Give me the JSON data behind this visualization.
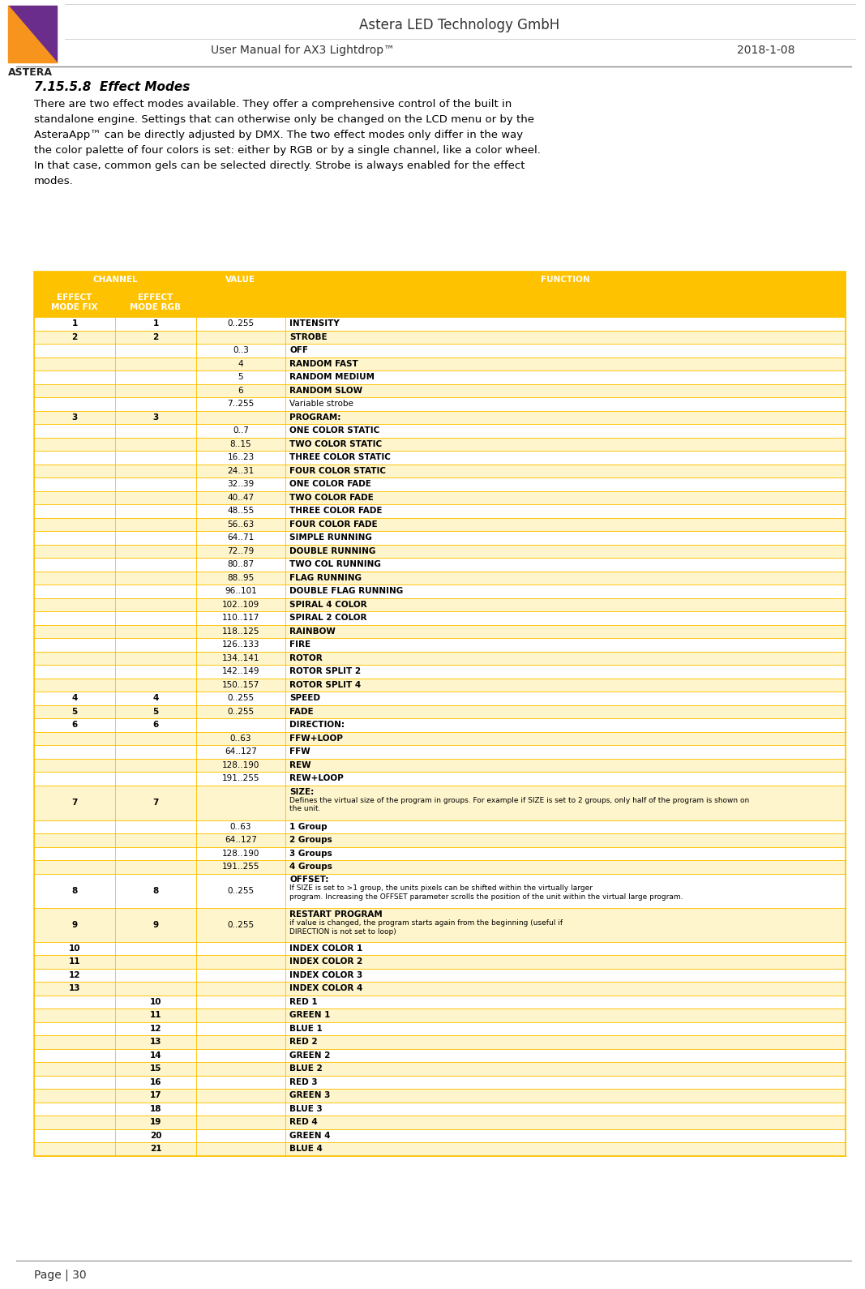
{
  "page_title1": "Astera LED Technology GmbH",
  "page_title2": "User Manual for AX3 Lightdrop™",
  "page_date": "2018-1-08",
  "page_footer": "Page | 30",
  "section_title": "7.15.5.8  Effect Modes",
  "body_lines": [
    "There are two effect modes available. They offer a comprehensive control of the built in",
    "standalone engine. Settings that can otherwise only be changed on the LCD menu or by the",
    "AsteraApp™ can be directly adjusted by DMX. The two effect modes only differ in the way",
    "the color palette of four colors is set: either by RGB or by a single channel, like a color wheel.",
    "In that case, common gels can be selected directly. Strobe is always enabled for the effect",
    "modes."
  ],
  "header_bg": "#FFC200",
  "header_text_color": "#FFFFFF",
  "row_white": "#FFFFFF",
  "row_yellow": "#FFF5CC",
  "border_color": "#FFC200",
  "table_rows": [
    {
      "ch_fix": "1",
      "ch_rgb": "1",
      "value": "0..255",
      "function": "INTENSITY",
      "bold": true,
      "hl": false,
      "type": "normal"
    },
    {
      "ch_fix": "2",
      "ch_rgb": "2",
      "value": "",
      "function": "STROBE",
      "bold": true,
      "hl": true,
      "type": "normal"
    },
    {
      "ch_fix": "",
      "ch_rgb": "",
      "value": "0..3",
      "function": "OFF",
      "bold": true,
      "hl": false,
      "type": "normal"
    },
    {
      "ch_fix": "",
      "ch_rgb": "",
      "value": "4",
      "function": "RANDOM FAST",
      "bold": true,
      "hl": true,
      "type": "normal"
    },
    {
      "ch_fix": "",
      "ch_rgb": "",
      "value": "5",
      "function": "RANDOM MEDIUM",
      "bold": true,
      "hl": false,
      "type": "normal"
    },
    {
      "ch_fix": "",
      "ch_rgb": "",
      "value": "6",
      "function": "RANDOM SLOW",
      "bold": true,
      "hl": true,
      "type": "normal"
    },
    {
      "ch_fix": "",
      "ch_rgb": "",
      "value": "7..255",
      "function": "Variable strobe",
      "bold": false,
      "hl": false,
      "type": "normal"
    },
    {
      "ch_fix": "3",
      "ch_rgb": "3",
      "value": "",
      "function": "PROGRAM:",
      "bold": true,
      "hl": true,
      "type": "normal"
    },
    {
      "ch_fix": "",
      "ch_rgb": "",
      "value": "0..7",
      "function": "ONE COLOR STATIC",
      "bold": true,
      "hl": false,
      "type": "normal"
    },
    {
      "ch_fix": "",
      "ch_rgb": "",
      "value": "8..15",
      "function": "TWO COLOR STATIC",
      "bold": true,
      "hl": true,
      "type": "normal"
    },
    {
      "ch_fix": "",
      "ch_rgb": "",
      "value": "16..23",
      "function": "THREE COLOR STATIC",
      "bold": true,
      "hl": false,
      "type": "normal"
    },
    {
      "ch_fix": "",
      "ch_rgb": "",
      "value": "24..31",
      "function": "FOUR COLOR STATIC",
      "bold": true,
      "hl": true,
      "type": "normal"
    },
    {
      "ch_fix": "",
      "ch_rgb": "",
      "value": "32..39",
      "function": "ONE COLOR FADE",
      "bold": true,
      "hl": false,
      "type": "normal"
    },
    {
      "ch_fix": "",
      "ch_rgb": "",
      "value": "40..47",
      "function": "TWO COLOR FADE",
      "bold": true,
      "hl": true,
      "type": "normal"
    },
    {
      "ch_fix": "",
      "ch_rgb": "",
      "value": "48..55",
      "function": "THREE COLOR FADE",
      "bold": true,
      "hl": false,
      "type": "normal"
    },
    {
      "ch_fix": "",
      "ch_rgb": "",
      "value": "56..63",
      "function": "FOUR COLOR FADE",
      "bold": true,
      "hl": true,
      "type": "normal"
    },
    {
      "ch_fix": "",
      "ch_rgb": "",
      "value": "64..71",
      "function": "SIMPLE RUNNING",
      "bold": true,
      "hl": false,
      "type": "normal"
    },
    {
      "ch_fix": "",
      "ch_rgb": "",
      "value": "72..79",
      "function": "DOUBLE RUNNING",
      "bold": true,
      "hl": true,
      "type": "normal"
    },
    {
      "ch_fix": "",
      "ch_rgb": "",
      "value": "80..87",
      "function": "TWO COL RUNNING",
      "bold": true,
      "hl": false,
      "type": "normal"
    },
    {
      "ch_fix": "",
      "ch_rgb": "",
      "value": "88..95",
      "function": "FLAG RUNNING",
      "bold": true,
      "hl": true,
      "type": "normal"
    },
    {
      "ch_fix": "",
      "ch_rgb": "",
      "value": "96..101",
      "function": "DOUBLE FLAG RUNNING",
      "bold": true,
      "hl": false,
      "type": "normal"
    },
    {
      "ch_fix": "",
      "ch_rgb": "",
      "value": "102..109",
      "function": "SPIRAL 4 COLOR",
      "bold": true,
      "hl": true,
      "type": "normal"
    },
    {
      "ch_fix": "",
      "ch_rgb": "",
      "value": "110..117",
      "function": "SPIRAL 2 COLOR",
      "bold": true,
      "hl": false,
      "type": "normal"
    },
    {
      "ch_fix": "",
      "ch_rgb": "",
      "value": "118..125",
      "function": "RAINBOW",
      "bold": true,
      "hl": true,
      "type": "normal"
    },
    {
      "ch_fix": "",
      "ch_rgb": "",
      "value": "126..133",
      "function": "FIRE",
      "bold": true,
      "hl": false,
      "type": "normal"
    },
    {
      "ch_fix": "",
      "ch_rgb": "",
      "value": "134..141",
      "function": "ROTOR",
      "bold": true,
      "hl": true,
      "type": "normal"
    },
    {
      "ch_fix": "",
      "ch_rgb": "",
      "value": "142..149",
      "function": "ROTOR SPLIT 2",
      "bold": true,
      "hl": false,
      "type": "normal"
    },
    {
      "ch_fix": "",
      "ch_rgb": "",
      "value": "150..157",
      "function": "ROTOR SPLIT 4",
      "bold": true,
      "hl": true,
      "type": "normal"
    },
    {
      "ch_fix": "4",
      "ch_rgb": "4",
      "value": "0..255",
      "function": "SPEED",
      "bold": true,
      "hl": false,
      "type": "normal"
    },
    {
      "ch_fix": "5",
      "ch_rgb": "5",
      "value": "0..255",
      "function": "FADE",
      "bold": true,
      "hl": true,
      "type": "normal"
    },
    {
      "ch_fix": "6",
      "ch_rgb": "6",
      "value": "",
      "function": "DIRECTION:",
      "bold": true,
      "hl": false,
      "type": "normal"
    },
    {
      "ch_fix": "",
      "ch_rgb": "",
      "value": "0..63",
      "function": "FFW+LOOP",
      "bold": true,
      "hl": true,
      "type": "normal"
    },
    {
      "ch_fix": "",
      "ch_rgb": "",
      "value": "64..127",
      "function": "FFW",
      "bold": true,
      "hl": false,
      "type": "normal"
    },
    {
      "ch_fix": "",
      "ch_rgb": "",
      "value": "128..190",
      "function": "REW",
      "bold": true,
      "hl": true,
      "type": "normal"
    },
    {
      "ch_fix": "",
      "ch_rgb": "",
      "value": "191..255",
      "function": "REW+LOOP",
      "bold": true,
      "hl": false,
      "type": "normal"
    },
    {
      "ch_fix": "7",
      "ch_rgb": "7",
      "value": "",
      "function": "SIZE:",
      "bold": true,
      "hl": true,
      "type": "size",
      "sub": "Defines the virtual size of the program in groups. For example if SIZE is set to 2 groups, only half of the program is shown on\nthe unit."
    },
    {
      "ch_fix": "",
      "ch_rgb": "",
      "value": "0..63",
      "function": "1 Group",
      "bold": true,
      "hl": false,
      "type": "normal"
    },
    {
      "ch_fix": "",
      "ch_rgb": "",
      "value": "64..127",
      "function": "2 Groups",
      "bold": true,
      "hl": true,
      "type": "normal"
    },
    {
      "ch_fix": "",
      "ch_rgb": "",
      "value": "128..190",
      "function": "3 Groups",
      "bold": true,
      "hl": false,
      "type": "normal"
    },
    {
      "ch_fix": "",
      "ch_rgb": "",
      "value": "191..255",
      "function": "4 Groups",
      "bold": true,
      "hl": true,
      "type": "normal"
    },
    {
      "ch_fix": "8",
      "ch_rgb": "8",
      "value": "0..255",
      "function": "OFFSET:",
      "bold": true,
      "hl": false,
      "type": "offset",
      "sub2": "If SIZE is set to >1 group, the units pixels can be shifted within the virtually larger\nprogram. Increasing the OFFSET parameter scrolls the position of the unit within the virtual large program."
    },
    {
      "ch_fix": "9",
      "ch_rgb": "9",
      "value": "0..255",
      "function": "RESTART PROGRAM",
      "bold": true,
      "hl": true,
      "type": "restart",
      "sub2": "if value is changed, the program starts again from the beginning (useful if\nDIRECTION is not set to loop)"
    },
    {
      "ch_fix": "10",
      "ch_rgb": "",
      "value": "",
      "function": "INDEX COLOR 1",
      "bold": true,
      "hl": false,
      "type": "normal"
    },
    {
      "ch_fix": "11",
      "ch_rgb": "",
      "value": "",
      "function": "INDEX COLOR 2",
      "bold": true,
      "hl": true,
      "type": "normal"
    },
    {
      "ch_fix": "12",
      "ch_rgb": "",
      "value": "",
      "function": "INDEX COLOR 3",
      "bold": true,
      "hl": false,
      "type": "normal"
    },
    {
      "ch_fix": "13",
      "ch_rgb": "",
      "value": "",
      "function": "INDEX COLOR 4",
      "bold": true,
      "hl": true,
      "type": "normal"
    },
    {
      "ch_fix": "",
      "ch_rgb": "10",
      "value": "",
      "function": "RED 1",
      "bold": true,
      "hl": false,
      "type": "normal"
    },
    {
      "ch_fix": "",
      "ch_rgb": "11",
      "value": "",
      "function": "GREEN 1",
      "bold": true,
      "hl": true,
      "type": "normal"
    },
    {
      "ch_fix": "",
      "ch_rgb": "12",
      "value": "",
      "function": "BLUE 1",
      "bold": true,
      "hl": false,
      "type": "normal"
    },
    {
      "ch_fix": "",
      "ch_rgb": "13",
      "value": "",
      "function": "RED 2",
      "bold": true,
      "hl": true,
      "type": "normal"
    },
    {
      "ch_fix": "",
      "ch_rgb": "14",
      "value": "",
      "function": "GREEN 2",
      "bold": true,
      "hl": false,
      "type": "normal"
    },
    {
      "ch_fix": "",
      "ch_rgb": "15",
      "value": "",
      "function": "BLUE 2",
      "bold": true,
      "hl": true,
      "type": "normal"
    },
    {
      "ch_fix": "",
      "ch_rgb": "16",
      "value": "",
      "function": "RED 3",
      "bold": true,
      "hl": false,
      "type": "normal"
    },
    {
      "ch_fix": "",
      "ch_rgb": "17",
      "value": "",
      "function": "GREEN 3",
      "bold": true,
      "hl": true,
      "type": "normal"
    },
    {
      "ch_fix": "",
      "ch_rgb": "18",
      "value": "",
      "function": "BLUE 3",
      "bold": true,
      "hl": false,
      "type": "normal"
    },
    {
      "ch_fix": "",
      "ch_rgb": "19",
      "value": "",
      "function": "RED 4",
      "bold": true,
      "hl": true,
      "type": "normal"
    },
    {
      "ch_fix": "",
      "ch_rgb": "20",
      "value": "",
      "function": "GREEN 4",
      "bold": true,
      "hl": false,
      "type": "normal"
    },
    {
      "ch_fix": "",
      "ch_rgb": "21",
      "value": "",
      "function": "BLUE 4",
      "bold": true,
      "hl": true,
      "type": "normal"
    }
  ]
}
